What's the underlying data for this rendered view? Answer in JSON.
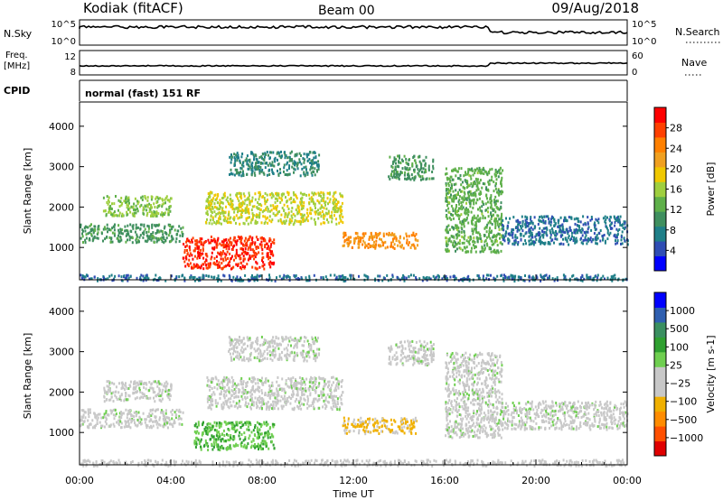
{
  "header": {
    "station": "Kodiak (fitACF)",
    "beam": "Beam 00",
    "date": "09/Aug/2018"
  },
  "strips": {
    "nsky_label": "N.Sky",
    "nsky_ticks": [
      "10^5",
      "10^0"
    ],
    "nsearch_label": "N.Search",
    "nsearch_ticks": [
      "10^5",
      "10^0"
    ],
    "freq_label_1": "Freq.",
    "freq_label_2": "[MHz]",
    "freq_ticks": [
      "12",
      "8"
    ],
    "nave_label": "Nave",
    "nave_ticks": [
      "60",
      "0"
    ],
    "cpid_label": "CPID",
    "cpid_text": "normal (fast) 151 RF"
  },
  "colors": {
    "power": [
      "#0000ff",
      "#2f4db4",
      "#1f7f88",
      "#3f8f5f",
      "#5fb04a",
      "#9fcf3f",
      "#f0c800",
      "#f0a020",
      "#ff8000",
      "#ff4000",
      "#ff0000"
    ],
    "velocity": [
      "#e00000",
      "#ff5000",
      "#ff8c00",
      "#f0b000",
      "#c8c8c8",
      "#c8c8c8",
      "#6fcf50",
      "#2fa030",
      "#3a8f60",
      "#2f5fb0",
      "#0000ff"
    ]
  },
  "chart_data": [
    {
      "type": "heatmap",
      "ylabel": "Slant Range [km]",
      "xlabel": "Time UT",
      "xlim": [
        0,
        24
      ],
      "ylim": [
        200,
        4600
      ],
      "x_ticks": [
        "00:00",
        "04:00",
        "08:00",
        "12:00",
        "16:00",
        "20:00",
        "00:00"
      ],
      "y_ticks": [
        "1000",
        "2000",
        "3000",
        "4000"
      ],
      "colorbar_label": "Power [dB]",
      "colorbar_ticks": [
        "4",
        "8",
        "12",
        "16",
        "20",
        "24",
        "28"
      ],
      "colorbar_range": [
        0,
        30
      ],
      "grid": false,
      "features": [
        {
          "t0": 0.0,
          "t1": 24.0,
          "r0": 200,
          "r1": 350,
          "value": 6
        },
        {
          "t0": 0.0,
          "t1": 4.5,
          "r0": 1150,
          "r1": 1600,
          "value": 10
        },
        {
          "t0": 1.0,
          "t1": 4.0,
          "r0": 1800,
          "r1": 2300,
          "value": 14
        },
        {
          "t0": 4.5,
          "t1": 8.5,
          "r0": 500,
          "r1": 1300,
          "value": 27
        },
        {
          "t0": 5.5,
          "t1": 11.5,
          "r0": 1600,
          "r1": 2400,
          "value": 16
        },
        {
          "t0": 6.5,
          "t1": 10.5,
          "r0": 2800,
          "r1": 3400,
          "value": 8
        },
        {
          "t0": 11.5,
          "t1": 14.8,
          "r0": 1000,
          "r1": 1400,
          "value": 22
        },
        {
          "t0": 13.5,
          "t1": 15.5,
          "r0": 2700,
          "r1": 3300,
          "value": 10
        },
        {
          "t0": 16.0,
          "t1": 18.5,
          "r0": 900,
          "r1": 3000,
          "value": 12
        },
        {
          "t0": 18.5,
          "t1": 24.0,
          "r0": 1100,
          "r1": 1800,
          "value": 6
        }
      ]
    },
    {
      "type": "heatmap",
      "ylabel": "Slant Range [km]",
      "xlabel": "Time UT",
      "xlim": [
        0,
        24
      ],
      "ylim": [
        200,
        4600
      ],
      "x_ticks": [
        "00:00",
        "04:00",
        "08:00",
        "12:00",
        "16:00",
        "20:00",
        "00:00"
      ],
      "y_ticks": [
        "1000",
        "2000",
        "3000",
        "4000"
      ],
      "colorbar_label": "Velocity [m s-1]",
      "colorbar_ticks": [
        "1000",
        "500",
        "100",
        "25",
        "−25",
        "−100",
        "−500",
        "−1000"
      ],
      "colorbar_range": [
        -1000,
        1000
      ],
      "grid": false,
      "features": [
        {
          "t0": 0.0,
          "t1": 24.0,
          "r0": 200,
          "r1": 350,
          "value": -60
        },
        {
          "t0": 0.0,
          "t1": 4.5,
          "r0": 1150,
          "r1": 1600,
          "value": 0
        },
        {
          "t0": 1.0,
          "t1": 4.0,
          "r0": 1800,
          "r1": 2300,
          "value": 0
        },
        {
          "t0": 5.0,
          "t1": 8.5,
          "r0": 600,
          "r1": 1300,
          "value": 250
        },
        {
          "t0": 5.5,
          "t1": 11.5,
          "r0": 1600,
          "r1": 2400,
          "value": 0
        },
        {
          "t0": 6.5,
          "t1": 10.5,
          "r0": 2800,
          "r1": 3400,
          "value": 0
        },
        {
          "t0": 11.5,
          "t1": 14.8,
          "r0": 1000,
          "r1": 1400,
          "value": -300
        },
        {
          "t0": 13.5,
          "t1": 15.5,
          "r0": 2700,
          "r1": 3300,
          "value": 0
        },
        {
          "t0": 16.0,
          "t1": 18.5,
          "r0": 900,
          "r1": 3000,
          "value": 0
        },
        {
          "t0": 18.5,
          "t1": 24.0,
          "r0": 1100,
          "r1": 1800,
          "value": 0
        }
      ]
    }
  ]
}
